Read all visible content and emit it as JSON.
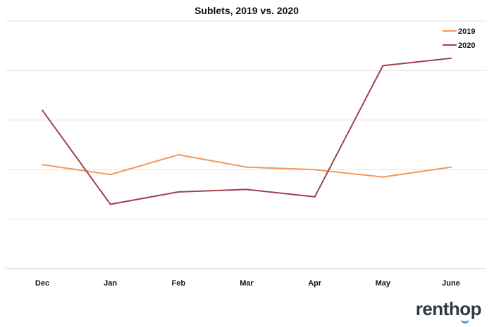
{
  "chart_data": {
    "type": "line",
    "title": "Sublets, 2019 vs. 2020",
    "categories": [
      "Dec",
      "Jan",
      "Feb",
      "Mar",
      "Apr",
      "May",
      "June"
    ],
    "series": [
      {
        "name": "2019",
        "color": "#f4975a",
        "values": [
          2.1,
          1.9,
          2.3,
          2.05,
          2.0,
          1.85,
          2.05
        ]
      },
      {
        "name": "2020",
        "color": "#a0424a",
        "values": [
          3.2,
          1.3,
          1.55,
          1.6,
          1.45,
          4.1,
          4.25
        ]
      }
    ],
    "ylim": [
      0,
      5
    ],
    "grid": true,
    "legend": "top-right"
  },
  "brand": {
    "logo_before": "renth",
    "logo_o": "o",
    "logo_after": "p"
  }
}
